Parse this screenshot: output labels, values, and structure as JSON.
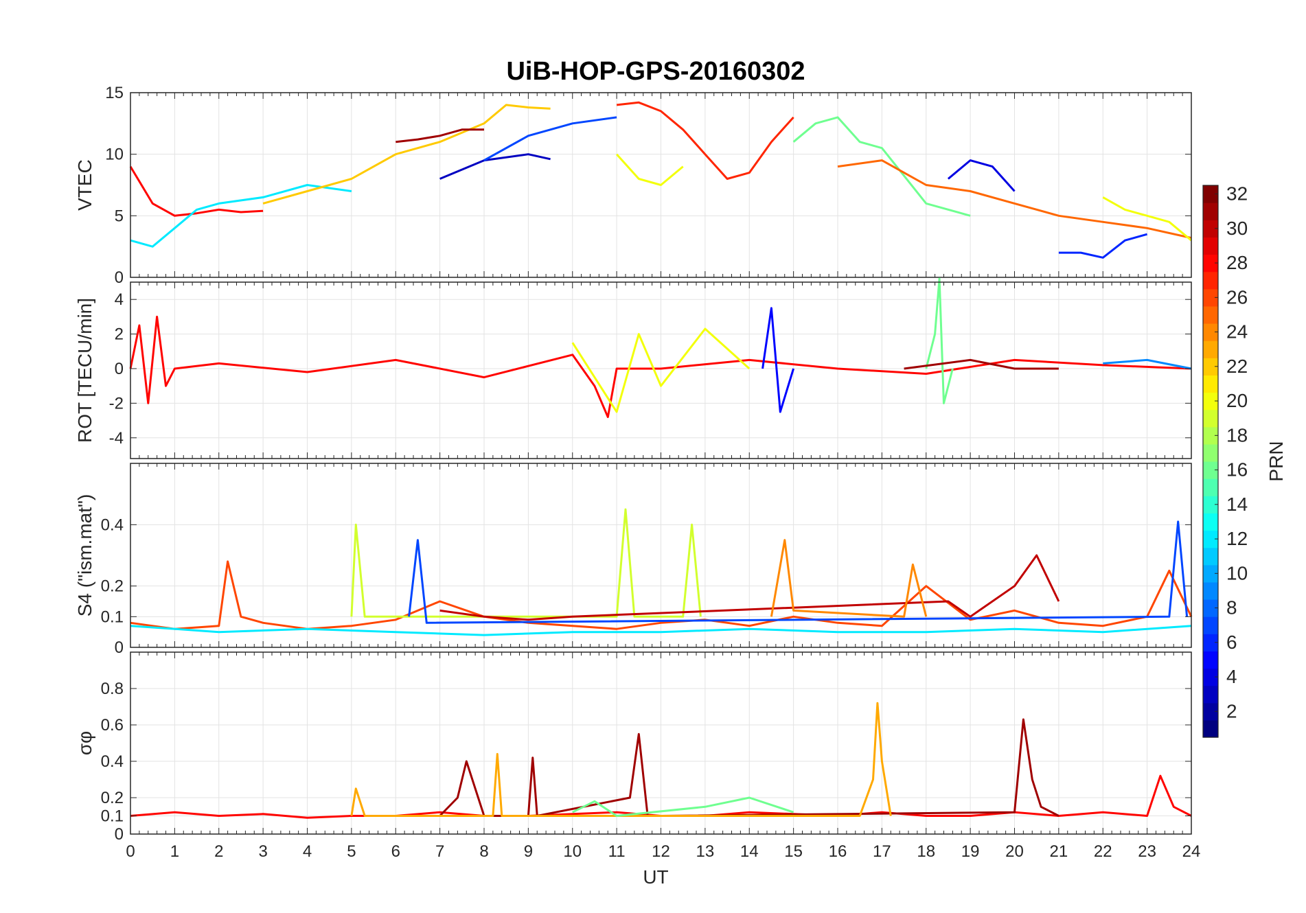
{
  "title": "UiB-HOP-GPS-20160302",
  "chart_data": {
    "type": "line",
    "title": "UiB-HOP-GPS-20160302",
    "xlabel": "UT",
    "xlim": [
      0,
      24
    ],
    "xticks": [
      "0",
      "1",
      "2",
      "3",
      "4",
      "5",
      "6",
      "7",
      "8",
      "9",
      "10",
      "11",
      "12",
      "13",
      "14",
      "15",
      "16",
      "17",
      "18",
      "19",
      "20",
      "21",
      "22",
      "23",
      "24"
    ],
    "colorbar": {
      "label": "PRN",
      "range": [
        1,
        32
      ],
      "ticks": [
        "2",
        "4",
        "6",
        "8",
        "10",
        "12",
        "14",
        "16",
        "18",
        "20",
        "22",
        "24",
        "26",
        "28",
        "30",
        "32"
      ],
      "colormap": "jet"
    },
    "panels": [
      {
        "ylabel": "VTEC",
        "ylim": [
          0,
          15
        ],
        "yticks": [
          "0",
          "5",
          "10",
          "15"
        ],
        "series": [
          {
            "prn": 28,
            "x": [
              0,
              0.5,
              1,
              1.5,
              2,
              2.5,
              3
            ],
            "y": [
              9,
              6,
              5,
              5.2,
              5.5,
              5.3,
              5.4
            ]
          },
          {
            "prn": 12,
            "x": [
              0,
              0.5,
              1,
              1.5,
              2,
              3,
              4,
              5
            ],
            "y": [
              3,
              2.5,
              4,
              5.5,
              6,
              6.5,
              7.5,
              7
            ]
          },
          {
            "prn": 22,
            "x": [
              3,
              4,
              5,
              6,
              7,
              8,
              8.5,
              9,
              9.5
            ],
            "y": [
              6,
              7,
              8,
              10,
              11,
              12.5,
              14,
              13.8,
              13.7
            ]
          },
          {
            "prn": 31,
            "x": [
              6,
              6.5,
              7,
              7.5,
              8
            ],
            "y": [
              11,
              11.2,
              11.5,
              12,
              12
            ]
          },
          {
            "prn": 3,
            "x": [
              7,
              8,
              9,
              9.5
            ],
            "y": [
              8,
              9.5,
              10,
              9.6
            ]
          },
          {
            "prn": 7,
            "x": [
              8,
              9,
              10,
              11
            ],
            "y": [
              9.5,
              11.5,
              12.5,
              13
            ]
          },
          {
            "prn": 27,
            "x": [
              11,
              11.5,
              12,
              12.5,
              13,
              13.5,
              14,
              14.5,
              15
            ],
            "y": [
              14,
              14.2,
              13.5,
              12,
              10,
              8,
              8.5,
              11,
              13
            ]
          },
          {
            "prn": 20,
            "x": [
              11,
              11.5,
              12,
              12.5
            ],
            "y": [
              10,
              8,
              7.5,
              9
            ]
          },
          {
            "prn": 16,
            "x": [
              15,
              15.5,
              16,
              16.5,
              17,
              18,
              19
            ],
            "y": [
              11,
              12.5,
              13,
              11,
              10.5,
              6,
              5
            ]
          },
          {
            "prn": 4,
            "x": [
              18.5,
              19,
              19.5,
              20
            ],
            "y": [
              8,
              9.5,
              9,
              7
            ]
          },
          {
            "prn": 25,
            "x": [
              16,
              17,
              18,
              19,
              20,
              21,
              22,
              23,
              24
            ],
            "y": [
              9,
              9.5,
              7.5,
              7,
              6,
              5,
              4.5,
              4,
              3.2
            ]
          },
          {
            "prn": 6,
            "x": [
              21,
              21.5,
              22,
              22.5,
              23
            ],
            "y": [
              2,
              2,
              1.6,
              3,
              3.5
            ]
          },
          {
            "prn": 20,
            "x": [
              22,
              22.5,
              23,
              23.5,
              24
            ],
            "y": [
              6.5,
              5.5,
              5,
              4.5,
              3
            ]
          }
        ]
      },
      {
        "ylabel": "ROT [TECU/min]",
        "ylim": [
          -5.2,
          5
        ],
        "yticks": [
          "-4",
          "-2",
          "0",
          "2",
          "4"
        ],
        "series": [
          {
            "prn": 28,
            "x": [
              0,
              0.2,
              0.4,
              0.6,
              0.8,
              1,
              2,
              4,
              6,
              8,
              10,
              10.5,
              10.8,
              11,
              12,
              14,
              16,
              18,
              20,
              22,
              24
            ],
            "y": [
              0,
              2.5,
              -2,
              3,
              -1,
              0,
              0.3,
              -0.2,
              0.5,
              -0.5,
              0.8,
              -1,
              -2.8,
              0,
              0,
              0.5,
              0,
              -0.3,
              0.5,
              0.2,
              0
            ]
          },
          {
            "prn": 20,
            "x": [
              10,
              11,
              11.5,
              12,
              13,
              14
            ],
            "y": [
              1.5,
              -2.5,
              2,
              -1,
              2.3,
              0
            ]
          },
          {
            "prn": 5,
            "x": [
              14.3,
              14.5,
              14.7,
              15
            ],
            "y": [
              0,
              3.5,
              -2.5,
              0
            ]
          },
          {
            "prn": 16,
            "x": [
              18,
              18.2,
              18.3,
              18.4,
              18.6
            ],
            "y": [
              0,
              2,
              5.2,
              -2,
              0
            ]
          },
          {
            "prn": 31,
            "x": [
              17.5,
              19,
              20,
              21
            ],
            "y": [
              0,
              0.5,
              0,
              0
            ]
          },
          {
            "prn": 9,
            "x": [
              22,
              23,
              24
            ],
            "y": [
              0.3,
              0.5,
              0
            ]
          }
        ]
      },
      {
        "ylabel": "S4 (\"ism.mat\")",
        "ylim": [
          0,
          0.6
        ],
        "yticks": [
          "0",
          "0.1",
          "0.2",
          "0.4"
        ],
        "series": [
          {
            "prn": 26,
            "x": [
              0,
              1,
              2,
              2.2,
              2.5,
              3,
              4,
              5,
              6,
              7,
              8,
              9,
              10,
              11,
              12,
              13,
              14,
              15,
              16,
              17,
              18,
              19,
              20,
              21,
              22,
              23,
              23.5,
              24
            ],
            "y": [
              0.08,
              0.06,
              0.07,
              0.28,
              0.1,
              0.08,
              0.06,
              0.07,
              0.09,
              0.15,
              0.1,
              0.08,
              0.07,
              0.06,
              0.08,
              0.09,
              0.07,
              0.1,
              0.08,
              0.07,
              0.2,
              0.09,
              0.12,
              0.08,
              0.07,
              0.1,
              0.25,
              0.1
            ]
          },
          {
            "prn": 19,
            "x": [
              5,
              5.1,
              5.3,
              11,
              11.2,
              11.4,
              12.5,
              12.7,
              12.9
            ],
            "y": [
              0.1,
              0.4,
              0.1,
              0.1,
              0.45,
              0.1,
              0.1,
              0.4,
              0.1
            ]
          },
          {
            "prn": 7,
            "x": [
              6.3,
              6.5,
              6.7,
              23.5,
              23.7,
              23.9
            ],
            "y": [
              0.1,
              0.35,
              0.08,
              0.1,
              0.41,
              0.1
            ]
          },
          {
            "prn": 30,
            "x": [
              7,
              8,
              9,
              10,
              18.5,
              19,
              20,
              20.5,
              21
            ],
            "y": [
              0.12,
              0.1,
              0.09,
              0.1,
              0.15,
              0.1,
              0.2,
              0.3,
              0.15
            ]
          },
          {
            "prn": 12,
            "x": [
              0,
              2,
              4,
              6,
              8,
              10,
              12,
              14,
              16,
              18,
              20,
              22,
              24
            ],
            "y": [
              0.07,
              0.05,
              0.06,
              0.05,
              0.04,
              0.05,
              0.05,
              0.06,
              0.05,
              0.05,
              0.06,
              0.05,
              0.07
            ]
          },
          {
            "prn": 24,
            "x": [
              14.5,
              14.8,
              15,
              17.5,
              17.7,
              18
            ],
            "y": [
              0.1,
              0.35,
              0.12,
              0.1,
              0.27,
              0.1
            ]
          }
        ]
      },
      {
        "ylabel": "σφ",
        "ylim": [
          0,
          1
        ],
        "yticks": [
          "0",
          "0.1",
          "0.2",
          "0.4",
          "0.6",
          "0.8"
        ],
        "series": [
          {
            "prn": 28,
            "x": [
              0,
              1,
              2,
              3,
              4,
              5,
              6,
              7,
              8,
              9,
              10,
              11,
              12,
              13,
              14,
              15,
              16,
              17,
              18,
              19,
              20,
              21,
              22,
              23,
              23.3,
              23.6,
              24
            ],
            "y": [
              0.1,
              0.12,
              0.1,
              0.11,
              0.09,
              0.1,
              0.1,
              0.12,
              0.1,
              0.1,
              0.11,
              0.12,
              0.1,
              0.1,
              0.12,
              0.11,
              0.1,
              0.12,
              0.1,
              0.1,
              0.12,
              0.1,
              0.12,
              0.1,
              0.32,
              0.15,
              0.1
            ]
          },
          {
            "prn": 31,
            "x": [
              7,
              7.4,
              7.6,
              8,
              9,
              9.1,
              9.2,
              11.3,
              11.5,
              11.7,
              12,
              20,
              20.2,
              20.4,
              20.6,
              21
            ],
            "y": [
              0.1,
              0.2,
              0.4,
              0.1,
              0.1,
              0.42,
              0.1,
              0.2,
              0.55,
              0.1,
              0.1,
              0.12,
              0.63,
              0.3,
              0.15,
              0.1
            ]
          },
          {
            "prn": 23,
            "x": [
              5,
              5.1,
              5.3,
              8.2,
              8.3,
              8.4,
              16.5,
              16.8,
              16.9,
              17,
              17.2
            ],
            "y": [
              0.1,
              0.25,
              0.1,
              0.1,
              0.44,
              0.1,
              0.1,
              0.3,
              0.72,
              0.4,
              0.1
            ]
          },
          {
            "prn": 16,
            "x": [
              10,
              10.5,
              11,
              13,
              14,
              15
            ],
            "y": [
              0.12,
              0.18,
              0.1,
              0.15,
              0.2,
              0.12
            ]
          }
        ]
      }
    ]
  }
}
